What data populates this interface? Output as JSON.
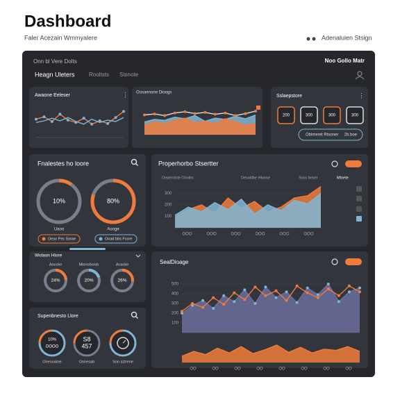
{
  "header": {
    "title": "Dashboard",
    "subtitle": "Faler Acezain Wmmyalere",
    "action": "Adenaluien Stsign"
  },
  "topbar": {
    "left": "Onn bl Vere Dolts",
    "right": "Noo Gollo Matr",
    "tabs": [
      "Heagn Uleters",
      "Rooltsts",
      "Stsnote"
    ]
  },
  "activity": {
    "title": "Awaone Eeleser",
    "chart": {
      "ylim": [
        0,
        100
      ],
      "series": [
        {
          "color": "#f07b3a",
          "style": "line",
          "dots": true,
          "values": [
            55,
            62,
            48,
            70,
            52,
            45,
            58,
            40,
            50,
            42,
            60,
            78
          ]
        },
        {
          "color": "#7fb6d6",
          "style": "line",
          "values": [
            45,
            50,
            58,
            50,
            60,
            48,
            40,
            55,
            45,
            52,
            48,
            60
          ]
        }
      ]
    }
  },
  "overview": {
    "title": "Oosaenone Dioogs",
    "chart": {
      "ylim": [
        0,
        100
      ],
      "series": [
        {
          "color": "#7fb6d6",
          "style": "area",
          "values": [
            40,
            48,
            45,
            55,
            50,
            60,
            42,
            52,
            48,
            58,
            50,
            62
          ]
        },
        {
          "color": "#f07b3a",
          "style": "area",
          "values": [
            30,
            40,
            35,
            45,
            52,
            38,
            42,
            35,
            50,
            40,
            30,
            35
          ]
        },
        {
          "color": "#e0e0e0",
          "style": "line",
          "dots": true,
          "values": [
            62,
            65,
            60,
            68,
            72,
            66,
            70,
            64,
            68,
            60,
            66,
            74
          ]
        }
      ]
    }
  },
  "stats": {
    "title": "Sslaepstore",
    "boxes": [
      200,
      300,
      300,
      300
    ],
    "button": "Oblmeret Rtsoner",
    "button_value": "2b.boe"
  },
  "finances": {
    "title": "Fnalestes ho loore",
    "gauges": [
      {
        "name": "Uaoo",
        "value": 10,
        "value_label": "10%",
        "color": "#f07b3a"
      },
      {
        "name": "Aooge",
        "value": 80,
        "value_label": "80%",
        "color": "#f07b3a"
      }
    ],
    "buttons": [
      "Oeso Pec Sorae",
      "Ooad bbs Fcore"
    ]
  },
  "properties": {
    "title": "Properhorbo Stsertter",
    "legend": [
      "Oeperclote Ooolbs",
      "Desaldbe Hloose",
      "Soss beser",
      "Mtoete"
    ],
    "chart": {
      "ylim": [
        0,
        400
      ],
      "yticks": [
        100,
        200,
        300
      ],
      "x_labels": [
        "OOO",
        "OOO",
        "OOO",
        "OOO",
        "OOO",
        "OOO"
      ],
      "series": [
        {
          "color": "#f07b3a",
          "style": "area",
          "values": [
            90,
            160,
            200,
            130,
            260,
            170,
            230,
            140,
            180,
            260,
            280,
            360
          ]
        },
        {
          "color": "#7fb6d6",
          "style": "area",
          "values": [
            110,
            180,
            140,
            220,
            160,
            250,
            120,
            200,
            150,
            240,
            210,
            300
          ]
        }
      ]
    }
  },
  "volume": {
    "title": "Wolaon Hlore",
    "gauges": [
      {
        "name": "Anocke",
        "value": 24,
        "value_label": "24%",
        "color": "#f07b3a"
      },
      {
        "name": "Mlonoborsb",
        "value": 20,
        "value_label": "20%",
        "color": "#7fb6d6"
      },
      {
        "name": "Acaoke",
        "value": 26,
        "value_label": "26%",
        "color": "#f07b3a"
      }
    ]
  },
  "summary": {
    "title": "Supenbnesto Llore",
    "dials": [
      {
        "lines": [
          "10%",
          "OOOO"
        ],
        "label": "Oneooatoe"
      },
      {
        "lines": [
          "S8",
          "457"
        ],
        "label": "Onnesab"
      },
      {
        "label": "Soo aztrene"
      }
    ]
  },
  "seal": {
    "title": "SealDioage",
    "chart": {
      "ylim": [
        0,
        600
      ],
      "yticks": [
        100,
        200,
        300,
        400,
        500
      ],
      "series": [
        {
          "color": "#6b6f9e",
          "style": "area",
          "dots": true,
          "values": [
            200,
            280,
            330,
            250,
            380,
            320,
            440,
            300,
            470,
            360,
            420,
            310,
            460,
            390,
            500,
            320,
            420,
            460
          ]
        },
        {
          "color": "#f07b3a",
          "style": "line",
          "dots": true,
          "values": [
            220,
            300,
            260,
            360,
            290,
            410,
            340,
            470,
            380,
            430,
            330,
            480,
            410,
            360,
            450,
            380,
            480,
            420
          ]
        }
      ]
    },
    "bars": {
      "ylim": [
        0,
        70
      ],
      "x_labels": [
        "OO",
        "OO",
        "OO",
        "OO",
        "OO",
        "OO",
        "OO",
        "OO"
      ],
      "series": [
        {
          "color": "#f07b3a",
          "style": "area",
          "values": [
            20,
            35,
            25,
            45,
            30,
            50,
            28,
            40,
            55,
            32,
            48,
            30,
            42,
            38,
            50,
            35
          ]
        }
      ]
    }
  }
}
